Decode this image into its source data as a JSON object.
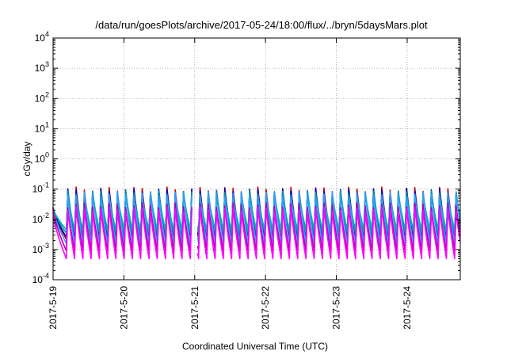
{
  "chart_data": {
    "type": "line",
    "title": "/data/run/goesPlots/archive/2017-05-24/18:00/flux/../bryn/5daysMars.plot",
    "xlabel": "Coordinated Universal Time (UTC)",
    "ylabel": "cGy/day",
    "yscale": "log",
    "ylim": [
      0.0001,
      10000
    ],
    "y_ticks": [
      {
        "base": "10",
        "exp": "-4",
        "value": 0.0001
      },
      {
        "base": "10",
        "exp": "-3",
        "value": 0.001
      },
      {
        "base": "10",
        "exp": "-2",
        "value": 0.01
      },
      {
        "base": "10",
        "exp": "-1",
        "value": 0.1
      },
      {
        "base": "10",
        "exp": "0",
        "value": 1
      },
      {
        "base": "10",
        "exp": "1",
        "value": 10
      },
      {
        "base": "10",
        "exp": "2",
        "value": 100
      },
      {
        "base": "10",
        "exp": "3",
        "value": 1000
      },
      {
        "base": "10",
        "exp": "4",
        "value": 10000
      }
    ],
    "xlim": [
      "2017-05-19T00:00",
      "2017-05-24T18:00"
    ],
    "x_ticks": [
      {
        "label": "2017-5-19",
        "value": "2017-05-19T00:00"
      },
      {
        "label": "2017-5-20",
        "value": "2017-05-20T00:00"
      },
      {
        "label": "2017-5-21",
        "value": "2017-05-21T00:00"
      },
      {
        "label": "2017-5-22",
        "value": "2017-05-22T00:00"
      },
      {
        "label": "2017-5-23",
        "value": "2017-05-23T00:00"
      },
      {
        "label": "2017-5-24",
        "value": "2017-05-24T00:00"
      }
    ],
    "grid": true,
    "period_hours": 2.8,
    "pattern": {
      "start": "2017-05-19T00:00",
      "initial_level": 0.025,
      "decay_to_min_hours": 4.5,
      "first_spike": "2017-05-19T04:30",
      "data_gaps": [
        [
          "2017-05-20T23:00",
          "2017-05-21T01:00"
        ]
      ]
    },
    "series": [
      {
        "color": "#cc0000",
        "peak": 0.1,
        "trough": 0.0022
      },
      {
        "color": "#0000cc",
        "peak": 0.09,
        "trough": 0.0026
      },
      {
        "color": "#009999",
        "peak": 0.075,
        "trough": 0.0035
      },
      {
        "color": "#00b0b0",
        "peak": 0.06,
        "trough": 0.0045
      },
      {
        "color": "#2aa0ff",
        "peak": 0.07,
        "trough": 0.0016
      },
      {
        "color": "#b000b0",
        "peak": 0.03,
        "trough": 0.0009
      },
      {
        "color": "#ff00ff",
        "peak": 0.022,
        "trough": 0.0005
      }
    ]
  }
}
